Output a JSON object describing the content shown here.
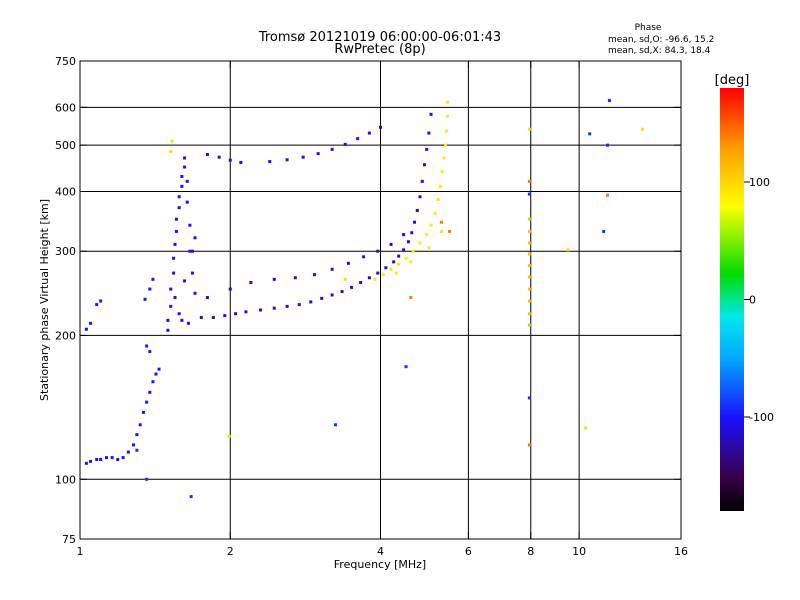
{
  "chart_data": {
    "type": "scatter",
    "title": "Tromsø 20121019 06:00:00-06:01:43",
    "subtitle": "RwPretec (8p)",
    "xlabel": "Frequency [MHz]",
    "ylabel": "Stationary phase Virtual Height [km]",
    "x_scale": "log2",
    "y_scale": "log",
    "xlim": [
      1,
      16
    ],
    "ylim": [
      75,
      750
    ],
    "x_ticks": [
      1,
      2,
      4,
      6,
      8,
      10,
      16
    ],
    "x_tick_labels": [
      "1",
      "2",
      "4",
      "6",
      "8",
      "10",
      "16"
    ],
    "x_gridlines": [
      2,
      4,
      6,
      8,
      10
    ],
    "y_ticks": [
      75,
      100,
      200,
      300,
      400,
      500,
      600,
      750
    ],
    "y_tick_labels": [
      "75",
      "100",
      "200",
      "300",
      "400",
      "500",
      "600",
      "750"
    ],
    "y_gridlines": [
      100,
      200,
      300,
      400,
      500,
      600
    ],
    "grid": true,
    "phase_box": {
      "title": "Phase",
      "line_o": "mean, sd,O: -96.6, 15.2",
      "line_x": "mean, sd,X:  84.3, 18.4"
    },
    "colorbar": {
      "label": "[deg]",
      "range": [
        -180,
        180
      ],
      "ticks": [
        100,
        0,
        -100
      ],
      "tick_labels": [
        "100",
        "0",
        "-100"
      ]
    },
    "series": [
      {
        "trace": "low-frequency trace",
        "phase_deg": -100,
        "points": [
          [
            1.03,
            108
          ],
          [
            1.05,
            109
          ],
          [
            1.08,
            110
          ],
          [
            1.1,
            110
          ],
          [
            1.13,
            111
          ],
          [
            1.16,
            111
          ],
          [
            1.19,
            110
          ],
          [
            1.22,
            111
          ],
          [
            1.25,
            114
          ],
          [
            1.28,
            118
          ],
          [
            1.3,
            124
          ],
          [
            1.32,
            130
          ],
          [
            1.34,
            138
          ],
          [
            1.36,
            145
          ],
          [
            1.38,
            152
          ],
          [
            1.4,
            160
          ],
          [
            1.42,
            166
          ],
          [
            1.44,
            170
          ],
          [
            1.03,
            206
          ],
          [
            1.05,
            212
          ],
          [
            1.08,
            232
          ],
          [
            1.1,
            236
          ],
          [
            1.35,
            238
          ],
          [
            1.38,
            250
          ],
          [
            1.4,
            262
          ],
          [
            1.36,
            190
          ],
          [
            1.38,
            185
          ]
        ]
      },
      {
        "trace": "E/F1 cusp",
        "phase_deg": -105,
        "points": [
          [
            1.5,
            205
          ],
          [
            1.5,
            215
          ],
          [
            1.52,
            230
          ],
          [
            1.52,
            250
          ],
          [
            1.54,
            270
          ],
          [
            1.54,
            290
          ],
          [
            1.55,
            310
          ],
          [
            1.56,
            330
          ],
          [
            1.56,
            350
          ],
          [
            1.58,
            370
          ],
          [
            1.58,
            390
          ],
          [
            1.6,
            410
          ],
          [
            1.6,
            430
          ],
          [
            1.62,
            450
          ],
          [
            1.62,
            470
          ],
          [
            1.64,
            420
          ],
          [
            1.64,
            380
          ],
          [
            1.66,
            340
          ],
          [
            1.66,
            300
          ],
          [
            1.68,
            270
          ],
          [
            1.7,
            245
          ],
          [
            1.6,
            215
          ],
          [
            1.65,
            212
          ],
          [
            1.58,
            222
          ],
          [
            1.55,
            240
          ],
          [
            1.62,
            260
          ],
          [
            1.68,
            300
          ],
          [
            1.7,
            320
          ]
        ]
      },
      {
        "trace": "F-region trace",
        "phase_deg": -110,
        "points": [
          [
            1.75,
            218
          ],
          [
            1.85,
            218
          ],
          [
            1.95,
            220
          ],
          [
            2.05,
            222
          ],
          [
            2.15,
            224
          ],
          [
            2.3,
            226
          ],
          [
            2.45,
            228
          ],
          [
            2.6,
            230
          ],
          [
            2.75,
            232
          ],
          [
            2.9,
            235
          ],
          [
            3.05,
            239
          ],
          [
            3.2,
            243
          ],
          [
            3.35,
            247
          ],
          [
            3.5,
            252
          ],
          [
            3.65,
            258
          ],
          [
            3.8,
            264
          ],
          [
            3.95,
            270
          ],
          [
            4.1,
            277
          ],
          [
            4.25,
            285
          ],
          [
            4.35,
            293
          ],
          [
            4.45,
            302
          ],
          [
            4.55,
            314
          ],
          [
            4.62,
            328
          ],
          [
            4.68,
            345
          ],
          [
            4.74,
            365
          ],
          [
            4.8,
            390
          ],
          [
            4.85,
            420
          ],
          [
            4.9,
            455
          ],
          [
            4.95,
            490
          ],
          [
            5.0,
            530
          ],
          [
            5.05,
            580
          ],
          [
            1.8,
            240
          ],
          [
            2.0,
            250
          ],
          [
            2.2,
            258
          ],
          [
            2.45,
            262
          ],
          [
            2.7,
            264
          ],
          [
            2.95,
            268
          ],
          [
            3.2,
            275
          ],
          [
            3.45,
            283
          ],
          [
            3.7,
            292
          ],
          [
            3.95,
            300
          ],
          [
            4.2,
            310
          ],
          [
            4.45,
            325
          ]
        ]
      },
      {
        "trace": "F2 trace",
        "phase_deg": -105,
        "points": [
          [
            1.8,
            478
          ],
          [
            1.9,
            472
          ],
          [
            2.0,
            465
          ],
          [
            2.1,
            460
          ],
          [
            2.4,
            462
          ],
          [
            2.6,
            466
          ],
          [
            2.8,
            472
          ],
          [
            3.0,
            480
          ],
          [
            3.2,
            490
          ],
          [
            3.4,
            502
          ],
          [
            3.6,
            516
          ],
          [
            3.8,
            530
          ],
          [
            4.0,
            545
          ]
        ]
      },
      {
        "trace": "X-mode trace",
        "phase_deg": 90,
        "points": [
          [
            3.9,
            262
          ],
          [
            4.05,
            268
          ],
          [
            4.2,
            275
          ],
          [
            4.35,
            282
          ],
          [
            4.5,
            290
          ],
          [
            4.65,
            300
          ],
          [
            4.8,
            312
          ],
          [
            4.95,
            325
          ],
          [
            5.05,
            340
          ],
          [
            5.15,
            360
          ],
          [
            5.22,
            385
          ],
          [
            5.28,
            410
          ],
          [
            5.32,
            440
          ],
          [
            5.36,
            470
          ],
          [
            5.4,
            500
          ],
          [
            5.42,
            535
          ],
          [
            5.45,
            575
          ],
          [
            5.45,
            615
          ],
          [
            4.3,
            270
          ],
          [
            4.6,
            285
          ],
          [
            5.0,
            305
          ],
          [
            5.3,
            330
          ]
        ]
      },
      {
        "trace": "interference at 8 MHz",
        "phase_deg": 110,
        "points": [
          [
            7.95,
            210
          ],
          [
            7.95,
            222
          ],
          [
            7.95,
            236
          ],
          [
            7.95,
            250
          ],
          [
            7.95,
            265
          ],
          [
            7.95,
            280
          ],
          [
            7.95,
            296
          ],
          [
            7.95,
            312
          ],
          [
            7.95,
            330
          ],
          [
            7.95,
            350
          ]
        ]
      },
      {
        "trace": "scattered points",
        "phase_deg": -90,
        "points": [
          [
            1.67,
            92
          ],
          [
            3.25,
            130
          ],
          [
            4.5,
            172
          ],
          [
            7.95,
            148
          ],
          [
            7.95,
            395
          ],
          [
            10.5,
            528
          ],
          [
            11.4,
            500
          ],
          [
            11.5,
            620
          ],
          [
            11.2,
            330
          ],
          [
            1.3,
            115
          ],
          [
            1.36,
            100
          ]
        ]
      },
      {
        "trace": "scattered warm points",
        "phase_deg": 140,
        "points": [
          [
            7.95,
            118
          ],
          [
            7.95,
            420
          ],
          [
            11.4,
            393
          ],
          [
            5.3,
            345
          ],
          [
            4.6,
            240
          ],
          [
            5.5,
            330
          ]
        ]
      },
      {
        "trace": "scattered light points",
        "phase_deg": 95,
        "points": [
          [
            1.99,
            123
          ],
          [
            9.5,
            302
          ],
          [
            10.3,
            128
          ],
          [
            13.4,
            540
          ],
          [
            1.52,
            485
          ],
          [
            1.53,
            510
          ],
          [
            7.95,
            540
          ],
          [
            3.4,
            262
          ]
        ]
      }
    ]
  }
}
